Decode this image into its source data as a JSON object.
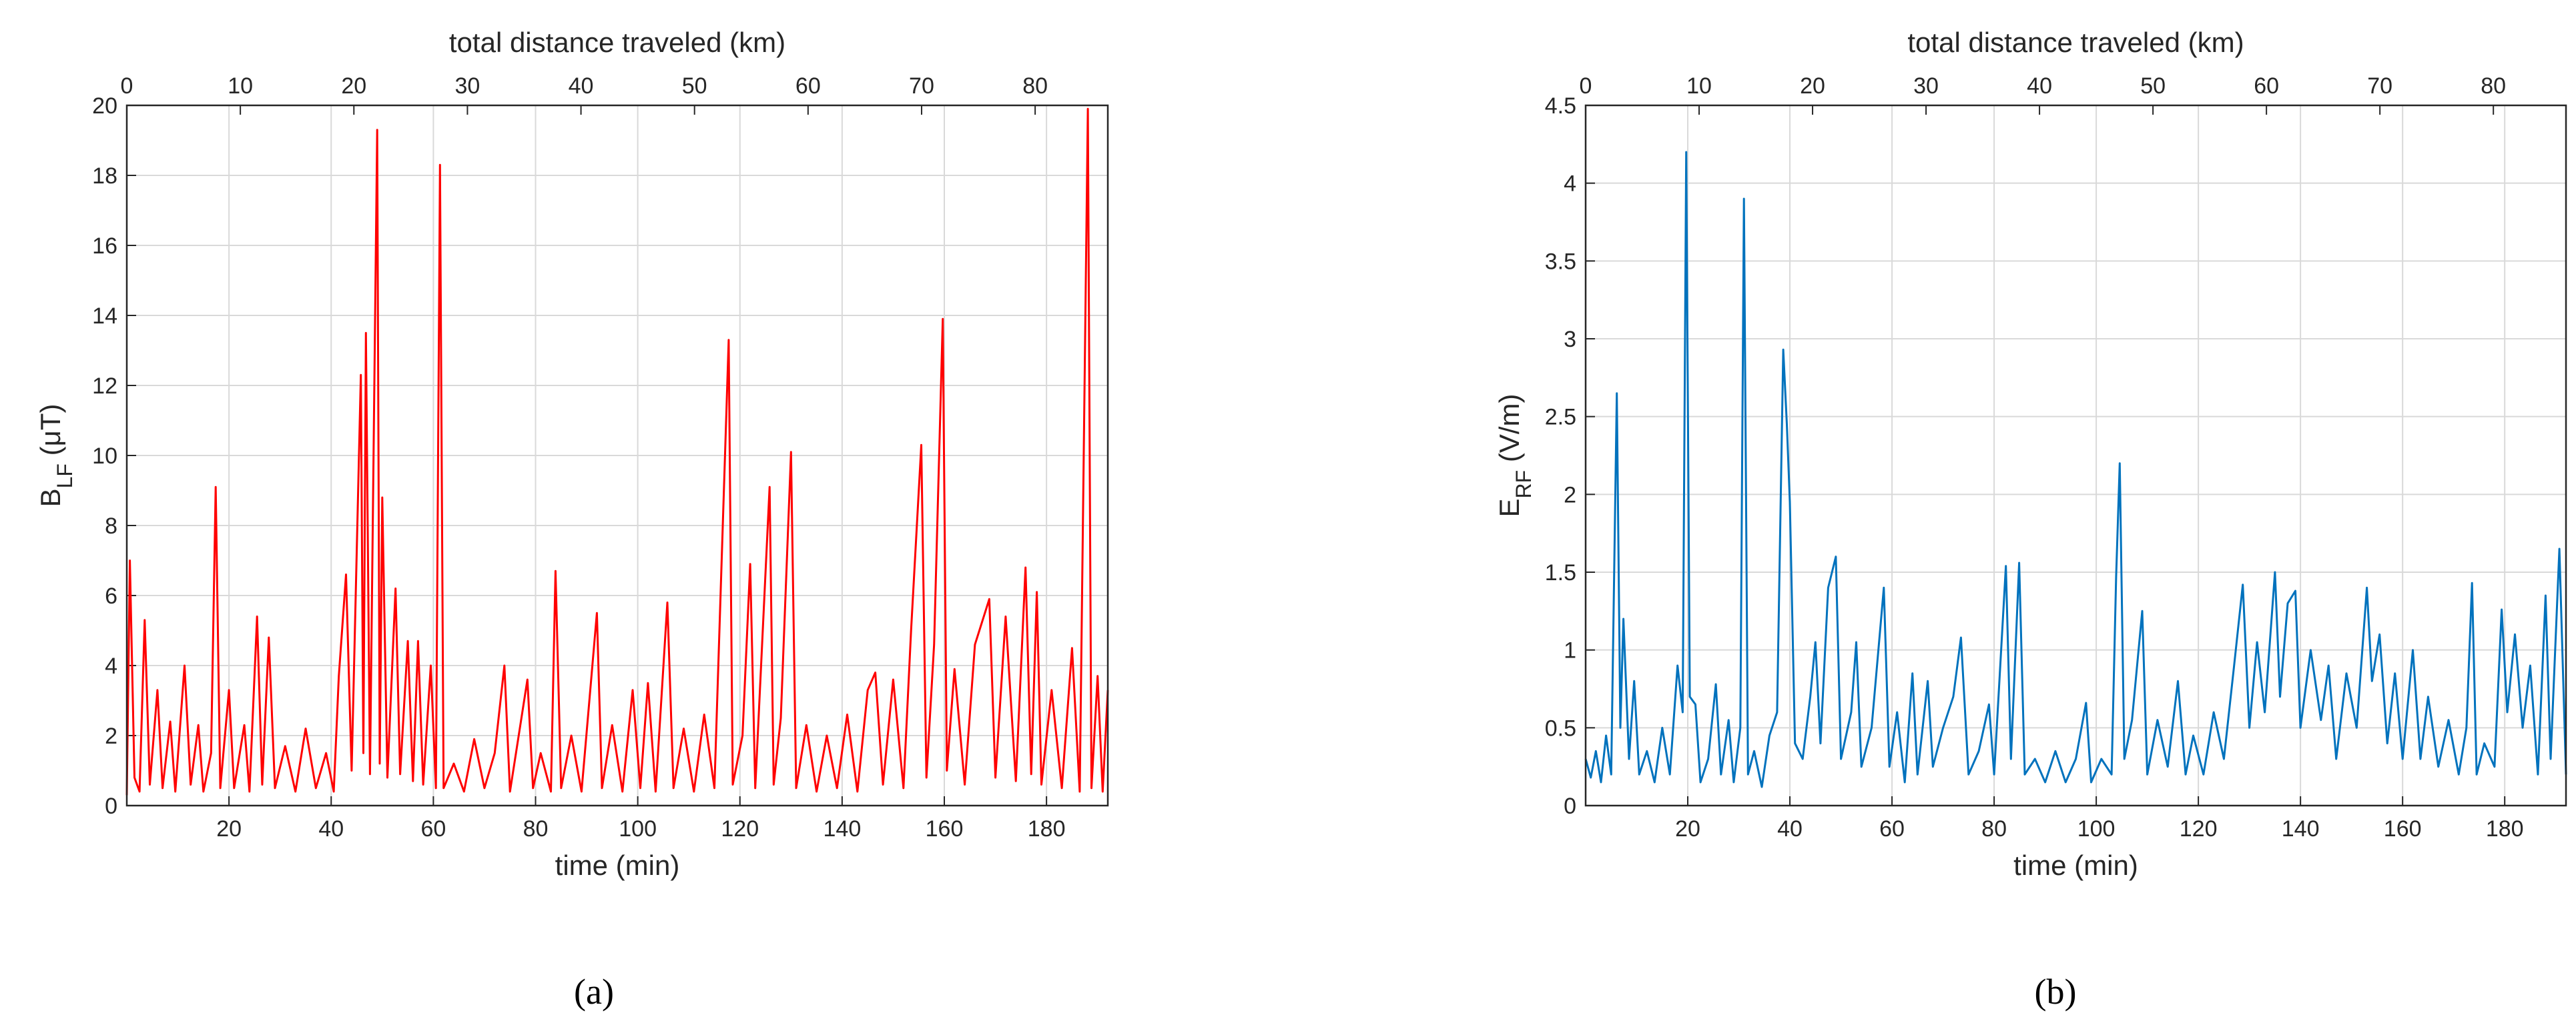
{
  "chart_data": [
    {
      "type": "line",
      "caption": "(a)",
      "xlabel": "time (min)",
      "x2label": "total distance traveled (km)",
      "ylabel": [
        "B",
        "LF",
        " (μT)"
      ],
      "color": "#ff0000",
      "grid": true,
      "xlim": [
        0,
        192
      ],
      "xticks": [
        20,
        40,
        60,
        80,
        100,
        120,
        140,
        160,
        180
      ],
      "x2lim": [
        0,
        86.4
      ],
      "x2ticks": [
        0,
        10,
        20,
        30,
        40,
        50,
        60,
        70,
        80
      ],
      "ylim": [
        0,
        20
      ],
      "yticks": [
        0,
        2,
        4,
        6,
        8,
        10,
        12,
        14,
        16,
        18,
        20
      ],
      "x": [
        0,
        0.6,
        1.5,
        2.5,
        3.5,
        4.5,
        6,
        7,
        8.5,
        9.5,
        11.3,
        12.5,
        14,
        15,
        16.5,
        17.4,
        18.3,
        20,
        21,
        23,
        24,
        25.5,
        26.5,
        27.8,
        29,
        31,
        33,
        35,
        37,
        39,
        40.5,
        41.5,
        42.9,
        44,
        45.8,
        46.3,
        46.8,
        47.6,
        49,
        49.5,
        50,
        51,
        52.6,
        53.5,
        55,
        56,
        57,
        58,
        59.5,
        60.5,
        61.3,
        62,
        64,
        66,
        68,
        70,
        72,
        73.9,
        75,
        78.4,
        79.5,
        81,
        83,
        83.9,
        85,
        87,
        89,
        92,
        93,
        95,
        97,
        99,
        100.5,
        102,
        103.5,
        105.8,
        107,
        109,
        111,
        113,
        115,
        117.8,
        118.6,
        120.5,
        122,
        123,
        125.8,
        126.6,
        128,
        130,
        131,
        133,
        135,
        137,
        139,
        141,
        143,
        145,
        146.5,
        148,
        150,
        152,
        153.5,
        155.5,
        156.5,
        158,
        159.7,
        160.5,
        162,
        164,
        166,
        168.8,
        170,
        172,
        174,
        175.9,
        177,
        178.1,
        179,
        181,
        183,
        185,
        186.5,
        188.1,
        188.8,
        190,
        191,
        192
      ],
      "values": [
        0.3,
        7.0,
        0.8,
        0.4,
        5.3,
        0.6,
        3.3,
        0.5,
        2.4,
        0.4,
        4.0,
        0.6,
        2.3,
        0.4,
        1.5,
        9.1,
        0.5,
        3.3,
        0.5,
        2.3,
        0.4,
        5.4,
        0.6,
        4.8,
        0.5,
        1.7,
        0.4,
        2.2,
        0.5,
        1.5,
        0.4,
        3.7,
        6.6,
        1.0,
        12.3,
        1.5,
        13.5,
        0.9,
        19.3,
        1.2,
        8.8,
        0.8,
        6.2,
        0.9,
        4.7,
        0.7,
        4.7,
        0.6,
        4.0,
        0.5,
        18.3,
        0.5,
        1.2,
        0.4,
        1.9,
        0.5,
        1.5,
        4.0,
        0.4,
        3.6,
        0.5,
        1.5,
        0.4,
        6.7,
        0.5,
        2.0,
        0.4,
        5.5,
        0.5,
        2.3,
        0.4,
        3.3,
        0.5,
        3.5,
        0.4,
        5.8,
        0.5,
        2.2,
        0.4,
        2.6,
        0.5,
        13.3,
        0.6,
        2.0,
        6.9,
        0.5,
        9.1,
        0.6,
        2.5,
        10.1,
        0.5,
        2.3,
        0.4,
        2.0,
        0.5,
        2.6,
        0.4,
        3.3,
        3.8,
        0.6,
        3.6,
        0.5,
        5.0,
        10.3,
        0.8,
        4.6,
        13.9,
        1.0,
        3.9,
        0.6,
        4.6,
        5.9,
        0.8,
        5.4,
        0.7,
        6.8,
        0.9,
        6.1,
        0.6,
        3.3,
        0.5,
        4.5,
        0.4,
        19.9,
        0.5,
        3.7,
        0.4,
        3.3
      ]
    },
    {
      "type": "line",
      "caption": "(b)",
      "xlabel": "time (min)",
      "x2label": "total distance traveled (km)",
      "ylabel": [
        "E",
        "RF",
        " (V/m)"
      ],
      "color": "#0072bd",
      "grid": true,
      "xlim": [
        0,
        192
      ],
      "xticks": [
        20,
        40,
        60,
        80,
        100,
        120,
        140,
        160,
        180
      ],
      "x2lim": [
        0,
        86.4
      ],
      "x2ticks": [
        0,
        10,
        20,
        30,
        40,
        50,
        60,
        70,
        80
      ],
      "ylim": [
        0,
        4.5
      ],
      "yticks": [
        0,
        0.5,
        1,
        1.5,
        2,
        2.5,
        3,
        3.5,
        4,
        4.5
      ],
      "x": [
        0,
        1,
        2,
        3,
        4,
        5,
        6.1,
        6.8,
        7.4,
        8.5,
        9.5,
        10.5,
        12,
        13.5,
        15,
        16.5,
        18,
        19,
        19.7,
        20.4,
        21.5,
        22.5,
        24,
        25.5,
        26.5,
        28,
        29,
        30.3,
        31,
        31.8,
        33,
        34.5,
        36,
        37.5,
        38.7,
        39.4,
        40,
        41,
        42.5,
        44,
        45,
        46,
        47.5,
        49,
        50,
        52,
        53,
        54,
        56,
        58.4,
        59.5,
        61,
        62.5,
        64,
        65,
        67,
        68,
        70,
        72,
        73.5,
        75,
        77,
        79,
        80,
        82.3,
        83.3,
        84.9,
        86,
        88,
        90,
        92,
        94,
        96,
        98,
        99,
        101,
        103,
        103.9,
        104.6,
        105.5,
        107,
        109,
        110,
        112,
        114,
        116,
        117.5,
        119,
        121,
        123,
        125,
        127,
        128.7,
        130,
        131.5,
        133,
        135,
        136,
        137.5,
        139,
        140,
        142,
        144,
        145.5,
        147,
        149,
        151,
        153,
        154,
        155.5,
        157,
        158.5,
        160,
        162,
        163.5,
        165,
        167,
        169,
        171,
        172.5,
        173.6,
        174.5,
        176,
        178,
        179.4,
        180.5,
        182,
        183.5,
        185,
        186.5,
        188,
        189,
        190.7,
        192
      ],
      "values": [
        0.3,
        0.18,
        0.35,
        0.15,
        0.45,
        0.2,
        2.65,
        0.5,
        1.2,
        0.3,
        0.8,
        0.2,
        0.35,
        0.15,
        0.5,
        0.2,
        0.9,
        0.6,
        4.2,
        0.7,
        0.65,
        0.15,
        0.3,
        0.78,
        0.2,
        0.55,
        0.15,
        0.5,
        3.9,
        0.2,
        0.35,
        0.12,
        0.45,
        0.6,
        2.93,
        2.45,
        1.95,
        0.4,
        0.3,
        0.7,
        1.05,
        0.4,
        1.4,
        1.6,
        0.3,
        0.6,
        1.05,
        0.25,
        0.5,
        1.4,
        0.25,
        0.6,
        0.15,
        0.85,
        0.2,
        0.8,
        0.25,
        0.5,
        0.7,
        1.08,
        0.2,
        0.35,
        0.65,
        0.2,
        1.54,
        0.3,
        1.56,
        0.2,
        0.3,
        0.15,
        0.35,
        0.15,
        0.3,
        0.66,
        0.15,
        0.3,
        0.2,
        1.47,
        2.2,
        0.3,
        0.55,
        1.25,
        0.2,
        0.55,
        0.25,
        0.8,
        0.2,
        0.45,
        0.2,
        0.6,
        0.3,
        0.9,
        1.42,
        0.5,
        1.05,
        0.6,
        1.5,
        0.7,
        1.3,
        1.38,
        0.5,
        1.0,
        0.55,
        0.9,
        0.3,
        0.85,
        0.5,
        1.4,
        0.8,
        1.1,
        0.4,
        0.85,
        0.3,
        1.0,
        0.3,
        0.7,
        0.25,
        0.55,
        0.2,
        0.5,
        1.43,
        0.2,
        0.4,
        0.25,
        1.26,
        0.6,
        1.1,
        0.5,
        0.9,
        0.2,
        1.35,
        0.3,
        1.65,
        0.2
      ]
    }
  ]
}
